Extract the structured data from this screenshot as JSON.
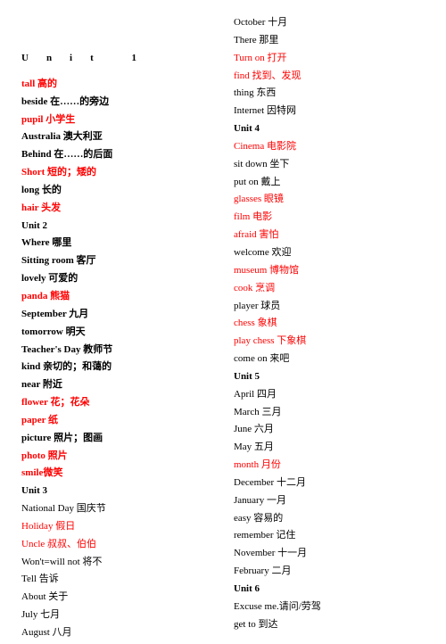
{
  "header": "Unit 1",
  "left": [
    {
      "text": "tall  高的",
      "red": true,
      "bold": true
    },
    {
      "text": "beside  在……的旁边",
      "red": false,
      "bold": true
    },
    {
      "text": "pupil  小学生",
      "red": true,
      "bold": true
    },
    {
      "text": "Australia  澳大利亚",
      "red": false,
      "bold": true
    },
    {
      "text": "Behind  在……的后面",
      "red": false,
      "bold": true
    },
    {
      "text": "Short  短的；矮的",
      "red": true,
      "bold": true
    },
    {
      "text": "long  长的",
      "red": false,
      "bold": true
    },
    {
      "text": "hair  头发",
      "red": true,
      "bold": true
    },
    {
      "text": "Unit  2",
      "red": false,
      "bold": true
    },
    {
      "text": "Where  哪里",
      "red": false,
      "bold": true
    },
    {
      "text": "Sitting room  客厅",
      "red": false,
      "bold": true
    },
    {
      "text": "lovely  可爱的",
      "red": false,
      "bold": true
    },
    {
      "text": "panda  熊猫",
      "red": true,
      "bold": true
    },
    {
      "text": "September  九月",
      "red": false,
      "bold": true
    },
    {
      "text": "tomorrow  明天",
      "red": false,
      "bold": true
    },
    {
      "text": "Teacher's Day 教师节",
      "red": false,
      "bold": true
    },
    {
      "text": "kind  亲切的；和蔼的",
      "red": false,
      "bold": true
    },
    {
      "text": "near  附近",
      "red": false,
      "bold": true
    },
    {
      "text": "flower 花；花朵",
      "red": true,
      "bold": true
    },
    {
      "text": "paper  纸",
      "red": true,
      "bold": true
    },
    {
      "text": "picture 照片；图画",
      "red": false,
      "bold": true
    },
    {
      "text": "photo  照片",
      "red": true,
      "bold": true
    },
    {
      "text": "smile微笑",
      "red": true,
      "bold": true
    },
    {
      "text": "Unit  3",
      "red": false,
      "bold": true
    },
    {
      "text": "National Day 国庆节",
      "red": false,
      "bold": false
    },
    {
      "text": "Holiday  假日",
      "red": true,
      "bold": false
    },
    {
      "text": "Uncle  叔叔、伯伯",
      "red": true,
      "bold": false
    },
    {
      "text": "Won't=will not  将不",
      "red": false,
      "bold": false
    },
    {
      "text": "Tell  告诉",
      "red": false,
      "bold": false
    },
    {
      "text": "About  关于",
      "red": false,
      "bold": false
    },
    {
      "text": "July  七月",
      "red": false,
      "bold": false
    },
    {
      "text": "August  八月",
      "red": false,
      "bold": false
    }
  ],
  "right": [
    {
      "text": "October  十月",
      "red": false,
      "bold": false
    },
    {
      "text": "There  那里",
      "red": false,
      "bold": false
    },
    {
      "text": "Turn on  打开",
      "red": true,
      "bold": false
    },
    {
      "text": "find  找到、发现",
      "red": true,
      "bold": false
    },
    {
      "text": "thing  东西",
      "red": false,
      "bold": false
    },
    {
      "text": "Internet  因特网",
      "red": false,
      "bold": false
    },
    {
      "text": "Unit 4",
      "red": false,
      "bold": true
    },
    {
      "text": "Cinema  电影院",
      "red": true,
      "bold": false
    },
    {
      "text": "sit down  坐下",
      "red": false,
      "bold": false
    },
    {
      "text": "put on  戴上",
      "red": false,
      "bold": false
    },
    {
      "text": "glasses  眼镜",
      "red": true,
      "bold": false
    },
    {
      "text": "film  电影",
      "red": true,
      "bold": false
    },
    {
      "text": "afraid  害怕",
      "red": true,
      "bold": false
    },
    {
      "text": "welcome  欢迎",
      "red": false,
      "bold": false
    },
    {
      "text": "museum  博物馆",
      "red": true,
      "bold": false
    },
    {
      "text": "cook  烹调",
      "red": true,
      "bold": false
    },
    {
      "text": "player  球员",
      "red": false,
      "bold": false
    },
    {
      "text": "chess  象棋",
      "red": true,
      "bold": false
    },
    {
      "text": "play chess  下象棋",
      "red": true,
      "bold": false
    },
    {
      "text": "come on  来吧",
      "red": false,
      "bold": false
    },
    {
      "text": "Unit 5",
      "red": false,
      "bold": true
    },
    {
      "text": "April 四月",
      "red": false,
      "bold": false
    },
    {
      "text": "March  三月",
      "red": false,
      "bold": false
    },
    {
      "text": "June  六月",
      "red": false,
      "bold": false
    },
    {
      "text": "May  五月",
      "red": false,
      "bold": false
    },
    {
      "text": "month  月份",
      "red": true,
      "bold": false
    },
    {
      "text": "December 十二月",
      "red": false,
      "bold": false
    },
    {
      "text": "January  一月",
      "red": false,
      "bold": false
    },
    {
      "text": "easy  容易的",
      "red": false,
      "bold": false
    },
    {
      "text": "remember  记住",
      "red": false,
      "bold": false
    },
    {
      "text": "November 十一月",
      "red": false,
      "bold": false
    },
    {
      "text": "February  二月",
      "red": false,
      "bold": false
    },
    {
      "text": "Unit 6",
      "red": false,
      "bold": true
    },
    {
      "text": "Excuse me.请问/劳驾",
      "red": false,
      "bold": false
    },
    {
      "text": "get to  到达",
      "red": false,
      "bold": false
    }
  ]
}
